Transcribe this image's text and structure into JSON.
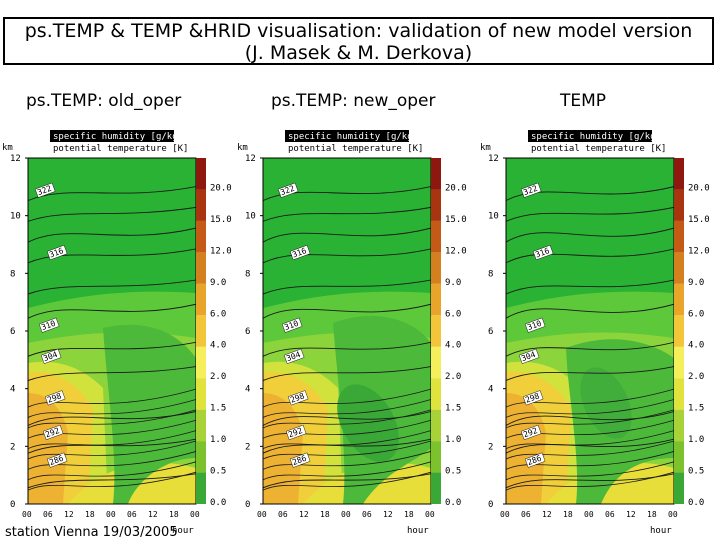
{
  "title": {
    "line1": "ps.TEMP & TEMP &HRID visualisation: validation of new model version",
    "line2": "(J. Masek & M. Derkova)"
  },
  "station": "station Vienna 19/03/2005",
  "chart_data": [
    {
      "type": "heatmap",
      "panel_label": "ps.TEMP: old_oper",
      "field_label": "specific humidity [g/kg]",
      "contour_label": "potential temperature [K]",
      "ylabel": "km",
      "ylim": [
        0,
        12
      ],
      "y_ticks": [
        "0",
        "2",
        "4",
        "6",
        "8",
        "10",
        "12"
      ],
      "x_ticks": [
        "00",
        "06",
        "12",
        "18",
        "00",
        "06",
        "12",
        "18",
        "00"
      ],
      "xlabel": "hour",
      "colorbar_ticks": [
        "0.0",
        "0.5",
        "1.0",
        "1.5",
        "2.0",
        "4.0",
        "6.0",
        "9.0",
        "12.0",
        "15.0",
        "20.0"
      ],
      "contour_labels": [
        "322",
        "316",
        "310",
        "304",
        "298",
        "292",
        "286"
      ]
    },
    {
      "type": "heatmap",
      "panel_label": "ps.TEMP: new_oper",
      "field_label": "specific humidity [g/kg]",
      "contour_label": "potential temperature [K]",
      "ylabel": "km",
      "ylim": [
        0,
        12
      ],
      "y_ticks": [
        "0",
        "2",
        "4",
        "6",
        "8",
        "10",
        "12"
      ],
      "x_ticks": [
        "00",
        "06",
        "12",
        "18",
        "00",
        "06",
        "12",
        "18",
        "00"
      ],
      "xlabel": "hour",
      "colorbar_ticks": [
        "0.0",
        "0.5",
        "1.0",
        "1.5",
        "2.0",
        "4.0",
        "6.0",
        "9.0",
        "12.0",
        "15.0",
        "20.0"
      ],
      "contour_labels": [
        "322",
        "316",
        "310",
        "304",
        "298",
        "292",
        "286"
      ]
    },
    {
      "type": "heatmap",
      "panel_label": "TEMP",
      "field_label": "specific humidity [g/kg]",
      "contour_label": "potential temperature [K]",
      "ylabel": "km",
      "ylim": [
        0,
        12
      ],
      "y_ticks": [
        "0",
        "2",
        "4",
        "6",
        "8",
        "10",
        "12"
      ],
      "x_ticks": [
        "00",
        "06",
        "12",
        "18",
        "00",
        "06",
        "12",
        "18",
        "00"
      ],
      "xlabel": "hour",
      "colorbar_ticks": [
        "0.0",
        "0.5",
        "1.0",
        "1.5",
        "2.0",
        "4.0",
        "6.0",
        "9.0",
        "12.0",
        "15.0",
        "20.0"
      ],
      "contour_labels": [
        "322",
        "316",
        "310",
        "304",
        "298",
        "292",
        "286"
      ]
    }
  ]
}
